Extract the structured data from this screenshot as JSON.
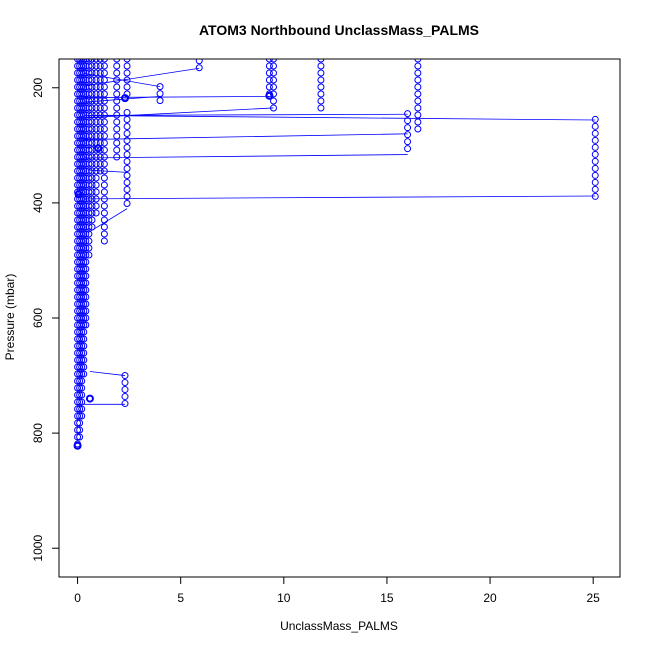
{
  "chart_data": {
    "type": "scatter",
    "title": "ATOM3 Northbound UnclassMass_PALMS",
    "xlabel": "UnclassMass_PALMS",
    "ylabel": "Pressure (mbar)",
    "xlim": [
      -0.9,
      26.3
    ],
    "ylim": [
      1050,
      150
    ],
    "y_reversed": true,
    "x_ticks": [
      0,
      5,
      10,
      15,
      20,
      25
    ],
    "x_tick_labels": [
      "0",
      "5",
      "10",
      "15",
      "20",
      "25"
    ],
    "y_ticks": [
      200,
      400,
      600,
      800,
      1000
    ],
    "y_tick_labels": [
      "200",
      "400",
      "600",
      "800",
      "1000"
    ],
    "grid": false,
    "marker": "open-circle",
    "colors": {
      "series": "#0000ff",
      "axis": "#000000"
    },
    "vertical_columns": [
      {
        "x": 25.1,
        "p_top": 255,
        "p_bottom": 390
      },
      {
        "x": 16.5,
        "p_top": 150,
        "p_bottom": 280
      },
      {
        "x": 16.0,
        "p_top": 245,
        "p_bottom": 315
      },
      {
        "x": 11.8,
        "p_top": 150,
        "p_bottom": 242
      },
      {
        "x": 9.5,
        "p_top": 150,
        "p_bottom": 235
      },
      {
        "x": 9.3,
        "p_top": 150,
        "p_bottom": 215
      },
      {
        "x": 5.9,
        "p_top": 153,
        "p_bottom": 166
      },
      {
        "x": 4.0,
        "p_top": 198,
        "p_bottom": 222
      },
      {
        "x": 2.4,
        "p_top": 243,
        "p_bottom": 410
      },
      {
        "x": 2.4,
        "p_top": 150,
        "p_bottom": 218
      },
      {
        "x": 2.3,
        "p_top": 700,
        "p_bottom": 750
      },
      {
        "x": 1.9,
        "p_top": 150,
        "p_bottom": 330
      },
      {
        "x": 1.3,
        "p_top": 150,
        "p_bottom": 468
      },
      {
        "x": 1.1,
        "p_top": 150,
        "p_bottom": 345
      },
      {
        "x": 0.9,
        "p_top": 150,
        "p_bottom": 420
      },
      {
        "x": 0.7,
        "p_top": 150,
        "p_bottom": 450
      },
      {
        "x": 0.55,
        "p_top": 150,
        "p_bottom": 490
      },
      {
        "x": 0.4,
        "p_top": 150,
        "p_bottom": 620
      },
      {
        "x": 0.3,
        "p_top": 150,
        "p_bottom": 700
      },
      {
        "x": 0.2,
        "p_top": 150,
        "p_bottom": 780
      },
      {
        "x": 0.1,
        "p_top": 150,
        "p_bottom": 810
      },
      {
        "x": 0.0,
        "p_top": 150,
        "p_bottom": 822
      }
    ],
    "connector_lines": [
      {
        "x1": 0.3,
        "p1": 393,
        "x2": 25.1,
        "p2": 388
      },
      {
        "x1": 0.3,
        "p1": 248,
        "x2": 25.1,
        "p2": 256
      },
      {
        "x1": 0.3,
        "p1": 290,
        "x2": 16.0,
        "p2": 280
      },
      {
        "x1": 0.3,
        "p1": 322,
        "x2": 16.0,
        "p2": 316
      },
      {
        "x1": 0.5,
        "p1": 248,
        "x2": 16.0,
        "p2": 246
      },
      {
        "x1": 0.4,
        "p1": 252,
        "x2": 9.5,
        "p2": 235
      },
      {
        "x1": 0.3,
        "p1": 217,
        "x2": 9.3,
        "p2": 215
      },
      {
        "x1": 0.3,
        "p1": 197,
        "x2": 5.9,
        "p2": 166
      },
      {
        "x1": 0.3,
        "p1": 225,
        "x2": 4.0,
        "p2": 215
      },
      {
        "x1": 0.3,
        "p1": 175,
        "x2": 4.0,
        "p2": 198
      },
      {
        "x1": 0.3,
        "p1": 750,
        "x2": 2.3,
        "p2": 750
      },
      {
        "x1": 0.6,
        "p1": 693,
        "x2": 2.3,
        "p2": 700
      },
      {
        "x1": 0.5,
        "p1": 452,
        "x2": 2.4,
        "p2": 410
      },
      {
        "x1": 0.5,
        "p1": 343,
        "x2": 2.4,
        "p2": 347
      },
      {
        "x1": 0.4,
        "p1": 305,
        "x2": 1.1,
        "p2": 300
      }
    ],
    "bold_points": [
      {
        "x": 2.3,
        "p": 218
      },
      {
        "x": 9.3,
        "p": 214
      },
      {
        "x": 0.6,
        "p": 740
      },
      {
        "x": 0.0,
        "p": 822
      },
      {
        "x": 1.0,
        "p": 305
      },
      {
        "x": 0.05,
        "p": 385
      }
    ]
  }
}
